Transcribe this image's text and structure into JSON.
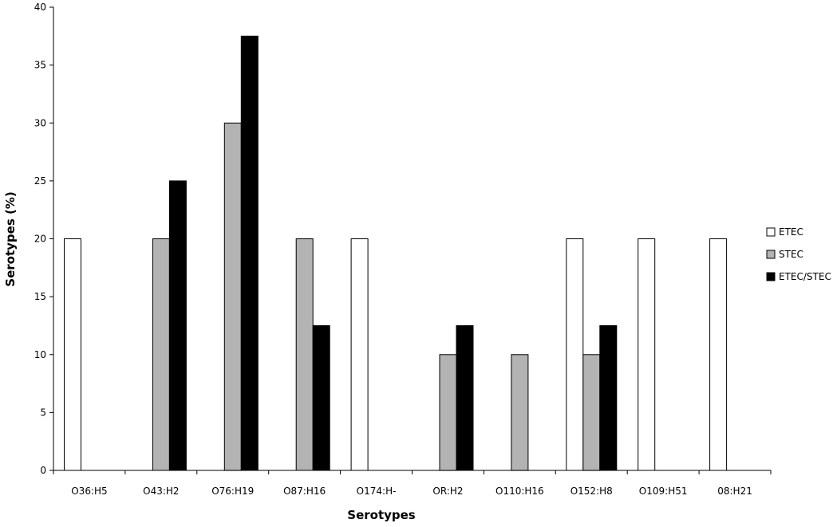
{
  "chart_data": {
    "type": "bar",
    "title": "",
    "xlabel": "Serotypes",
    "ylabel": "Serotypes (%)",
    "ylim": [
      0,
      40
    ],
    "yticks": [
      0,
      5,
      10,
      15,
      20,
      25,
      30,
      35,
      40
    ],
    "grid": false,
    "legend_position": "right",
    "categories": [
      "O36:H5",
      "O43:H2",
      "O76:H19",
      "O87:H16",
      "O174:H-",
      "OR:H2",
      "O110:H16",
      "O152:H8",
      "O109:H51",
      "08:H21"
    ],
    "series": [
      {
        "name": "ETEC",
        "color": "#ffffff",
        "values": [
          20,
          0,
          0,
          0,
          20,
          0,
          0,
          20,
          20,
          20
        ]
      },
      {
        "name": "STEC",
        "color": "#b3b3b3",
        "values": [
          0,
          20,
          30,
          20,
          0,
          10,
          10,
          10,
          0,
          0
        ]
      },
      {
        "name": "ETEC/STEC",
        "color": "#000000",
        "values": [
          0,
          25,
          37.5,
          12.5,
          0,
          12.5,
          0,
          12.5,
          0,
          0
        ]
      }
    ]
  }
}
